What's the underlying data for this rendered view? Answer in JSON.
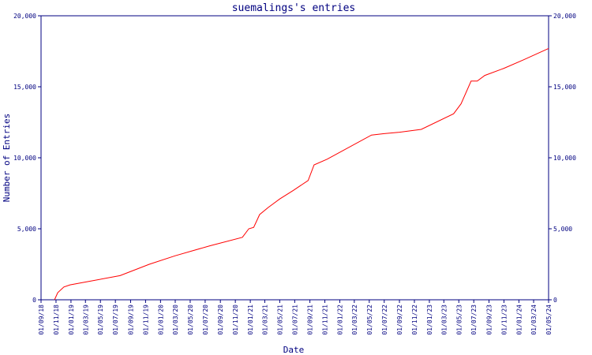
{
  "chart_data": {
    "type": "line",
    "title": "suemalings's entries",
    "xlabel": "Date",
    "ylabel": "Number of Entries",
    "ylim": [
      0,
      20000
    ],
    "y_ticks": [
      {
        "value": 0,
        "label": "0"
      },
      {
        "value": 5000,
        "label": "5,000"
      },
      {
        "value": 10000,
        "label": "10,000"
      },
      {
        "value": 15000,
        "label": "15,000"
      },
      {
        "value": 20000,
        "label": "20,000"
      }
    ],
    "x_ticks": [
      "01/09/18",
      "01/11/18",
      "01/01/19",
      "01/03/19",
      "01/05/19",
      "01/07/19",
      "01/09/19",
      "01/11/19",
      "01/01/20",
      "01/03/20",
      "01/05/20",
      "01/07/20",
      "01/09/20",
      "01/11/20",
      "01/01/21",
      "01/03/21",
      "01/05/21",
      "01/07/21",
      "01/09/21",
      "01/11/21",
      "01/01/22",
      "01/03/22",
      "01/05/22",
      "01/07/22",
      "01/09/22",
      "01/11/22",
      "01/01/23",
      "01/03/23",
      "01/05/23",
      "01/07/23",
      "01/09/23",
      "01/11/23",
      "01/01/24",
      "01/03/24",
      "01/05/24"
    ],
    "xlim": [
      "2018-09-01",
      "2024-05-01"
    ],
    "grid": false,
    "series": [
      {
        "color": "#ff0000",
        "points": [
          [
            "2018-10-26",
            0
          ],
          [
            "2018-11-08",
            500
          ],
          [
            "2018-12-03",
            900
          ],
          [
            "2018-12-28",
            1050
          ],
          [
            "2019-03-01",
            1250
          ],
          [
            "2019-07-20",
            1700
          ],
          [
            "2019-11-16",
            2500
          ],
          [
            "2020-03-01",
            3100
          ],
          [
            "2020-07-20",
            3800
          ],
          [
            "2020-11-30",
            4400
          ],
          [
            "2020-12-26",
            5000
          ],
          [
            "2021-01-15",
            5100
          ],
          [
            "2021-02-08",
            6000
          ],
          [
            "2021-03-15",
            6500
          ],
          [
            "2021-05-01",
            7100
          ],
          [
            "2021-06-25",
            7700
          ],
          [
            "2021-08-25",
            8400
          ],
          [
            "2021-09-18",
            9500
          ],
          [
            "2021-11-10",
            9900
          ],
          [
            "2022-05-10",
            11600
          ],
          [
            "2022-07-01",
            11700
          ],
          [
            "2022-09-01",
            11800
          ],
          [
            "2022-11-29",
            12000
          ],
          [
            "2023-04-10",
            13100
          ],
          [
            "2023-05-10",
            13800
          ],
          [
            "2023-06-20",
            15400
          ],
          [
            "2023-07-15",
            15400
          ],
          [
            "2023-08-15",
            15800
          ],
          [
            "2023-11-01",
            16300
          ],
          [
            "2024-01-20",
            16900
          ],
          [
            "2024-05-01",
            17700
          ]
        ]
      }
    ]
  }
}
